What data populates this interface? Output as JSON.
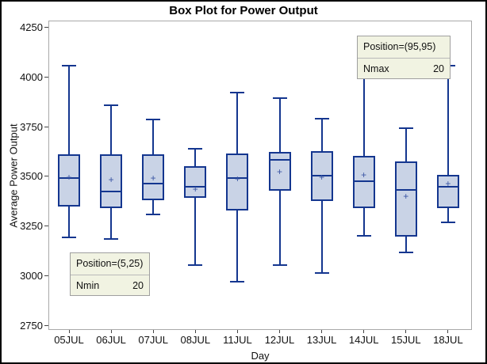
{
  "title": "Box Plot for Power Output",
  "colors": {
    "box_fill": "#c9d3e6",
    "box_border": "#14368f",
    "whisker": "#14368f",
    "mean_marker": "#3a55a4",
    "inset_bg": "#f1f3e2",
    "inset_border": "#9f9f9f",
    "frame": "#a9a9a9",
    "text": "#111111"
  },
  "insets": {
    "nmin": {
      "position_label": "Position=(5,25)",
      "stat_label": "Nmin",
      "stat_value": "20"
    },
    "nmax": {
      "position_label": "Position=(95,95)",
      "stat_label": "Nmax",
      "stat_value": "20"
    }
  },
  "chart_data": {
    "type": "box",
    "title": "Box Plot for Power Output",
    "xlabel": "Day",
    "ylabel": "Average Power Output",
    "ylim": [
      2750,
      4250
    ],
    "y_ticks": [
      4250,
      4000,
      3750,
      3500,
      3250,
      3000,
      2750
    ],
    "grid": false,
    "legend_position": "none",
    "annotations": [
      "Inset top-right: Position=(95,95), Nmax 20",
      "Inset bottom-left: Position=(5,25), Nmin 20"
    ],
    "categories": [
      "05JUL",
      "06JUL",
      "07JUL",
      "08JUL",
      "11JUL",
      "12JUL",
      "13JUL",
      "14JUL",
      "15JUL",
      "18JUL"
    ],
    "series": [
      {
        "category": "05JUL",
        "whisker_low": 3190,
        "q1": 3345,
        "median": 3490,
        "mean": 3495,
        "q3": 3610,
        "whisker_high": 4055
      },
      {
        "category": "06JUL",
        "whisker_low": 3185,
        "q1": 3340,
        "median": 3420,
        "mean": 3480,
        "q3": 3610,
        "whisker_high": 3855
      },
      {
        "category": "07JUL",
        "whisker_low": 3305,
        "q1": 3380,
        "median": 3460,
        "mean": 3490,
        "q3": 3610,
        "whisker_high": 3785
      },
      {
        "category": "08JUL",
        "whisker_low": 3050,
        "q1": 3390,
        "median": 3445,
        "mean": 3435,
        "q3": 3550,
        "whisker_high": 3635
      },
      {
        "category": "11JUL",
        "whisker_low": 2970,
        "q1": 3325,
        "median": 3490,
        "mean": 3485,
        "q3": 3615,
        "whisker_high": 3920
      },
      {
        "category": "12JUL",
        "whisker_low": 3050,
        "q1": 3425,
        "median": 3580,
        "mean": 3520,
        "q3": 3620,
        "whisker_high": 3890
      },
      {
        "category": "13JUL",
        "whisker_low": 3010,
        "q1": 3375,
        "median": 3500,
        "mean": 3495,
        "q3": 3625,
        "whisker_high": 3790
      },
      {
        "category": "14JUL",
        "whisker_low": 3200,
        "q1": 3340,
        "median": 3475,
        "mean": 3505,
        "q3": 3600,
        "whisker_high": 4055
      },
      {
        "category": "15JUL",
        "whisker_low": 3115,
        "q1": 3195,
        "median": 3430,
        "mean": 3400,
        "q3": 3575,
        "whisker_high": 3740
      },
      {
        "category": "18JUL",
        "whisker_low": 3265,
        "q1": 3340,
        "median": 3445,
        "mean": 3460,
        "q3": 3505,
        "whisker_high": 4055
      }
    ]
  }
}
